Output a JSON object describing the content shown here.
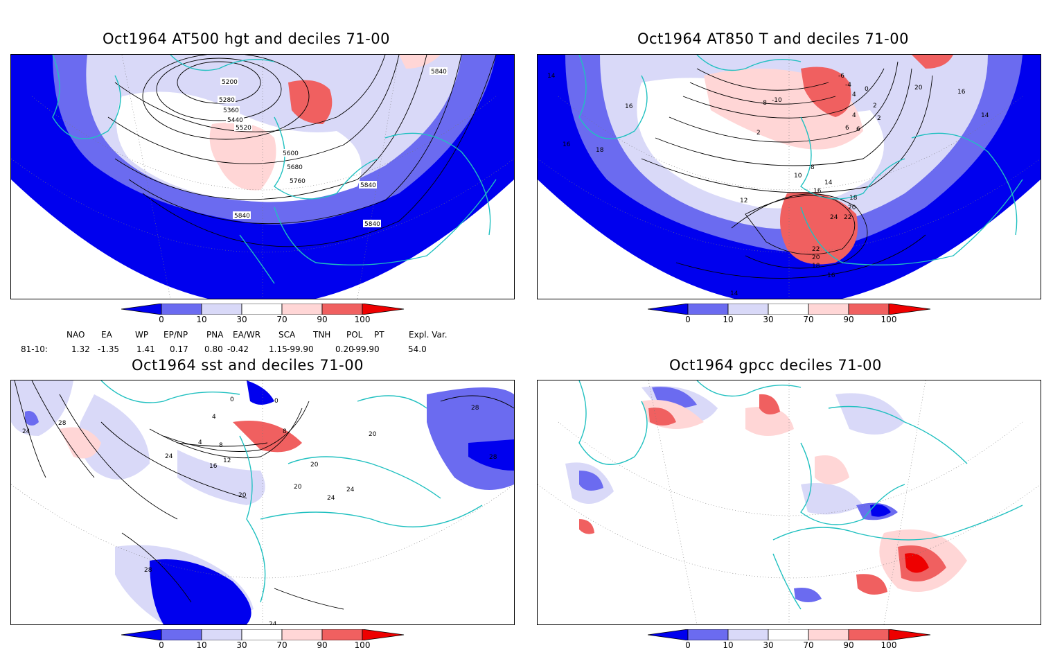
{
  "panels": [
    {
      "title": "Oct1964 AT500 hgt and deciles 71-00",
      "contour_labels": [
        "5200",
        "5280",
        "5360",
        "5440",
        "5520",
        "5600",
        "5680",
        "5760",
        "5840",
        "5840",
        "5840",
        "5840"
      ]
    },
    {
      "title": "Oct1964 AT850 T and deciles 71-00",
      "contour_labels": [
        "14",
        "16",
        "16",
        "18",
        "2",
        "0",
        "2",
        "4",
        "6",
        "-8",
        "-10",
        "-6",
        "-4",
        "20",
        "14",
        "16",
        "10",
        "8",
        "12",
        "14",
        "16",
        "18",
        "20",
        "22",
        "24",
        "22",
        "20",
        "18",
        "16",
        "14",
        "6",
        "4",
        "2"
      ]
    },
    {
      "title": "Oct1964 sst and deciles 71-00",
      "contour_labels": [
        "28",
        "24",
        "24",
        "28",
        "28",
        "0",
        "0",
        "4",
        "4",
        "8",
        "8",
        "12",
        "16",
        "20",
        "20",
        "20",
        "24",
        "24",
        "24",
        "28",
        "20"
      ]
    },
    {
      "title": "Oct1964 gpcc deciles 71-00",
      "contour_labels": []
    }
  ],
  "colorbar": {
    "labels": [
      "0",
      "10",
      "30",
      "70",
      "90",
      "100"
    ],
    "colors": [
      "#0000ee",
      "#6b6bf0",
      "#d9d9f8",
      "#ffffff",
      "#ffd6d6",
      "#f06060",
      "#ee0000"
    ]
  },
  "indices": {
    "headers": [
      "NAO",
      "EA",
      "WP",
      "EP/NP",
      "PNA",
      "EA/WR",
      "SCA",
      "TNH",
      "POL",
      "PT",
      "Expl. Var."
    ],
    "row_label": "81-10:",
    "values": [
      "1.32",
      "-1.35",
      "1.41",
      "0.17",
      "0.80",
      "-0.42",
      "1.15",
      "-99.90",
      "0.20",
      "-99.90",
      "54.0"
    ]
  },
  "colors": {
    "land_outline": "#20c0c0",
    "contour": "#000000",
    "strong_blue": "#0000ee",
    "mid_blue": "#6b6bf0",
    "light_blue": "#d9d9f8",
    "light_red": "#ffd6d6",
    "mid_red": "#f06060",
    "strong_red": "#ee0000"
  }
}
